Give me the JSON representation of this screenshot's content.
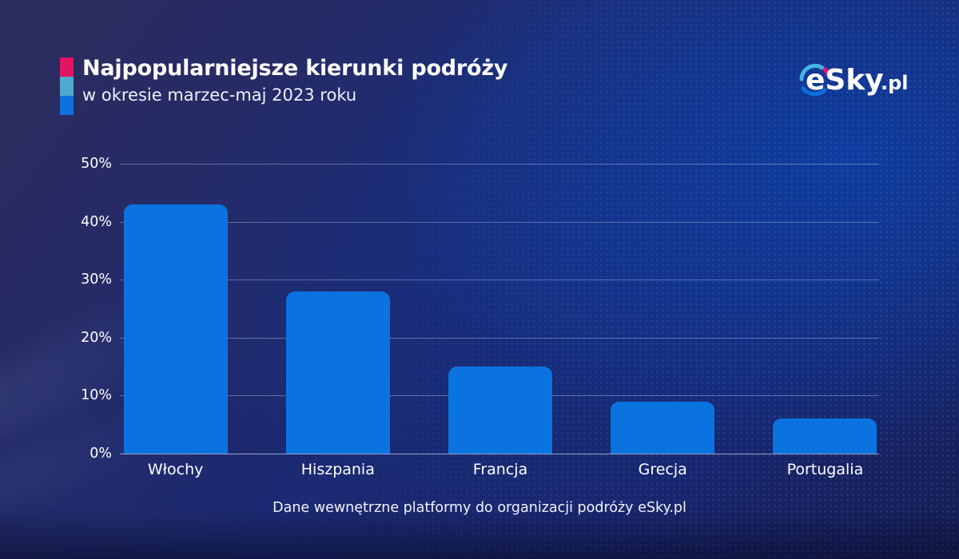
{
  "header": {
    "title": "Najpopularniejsze kierunki podróży",
    "subtitle": "w okresie marzec-maj 2023 roku",
    "accent_colors": [
      "#e11562",
      "#4fa9d0",
      "#0d72dd"
    ]
  },
  "logo": {
    "text": "eSky",
    "suffix": ".pl",
    "arc_colors": {
      "top": "#45b4e6",
      "dot": "#e8156b",
      "bottom": "#0d6fdd"
    }
  },
  "footer": {
    "source": "Dane wewnętrzne platformy do organizacji podróży eSky.pl"
  },
  "colors": {
    "bar": "#0b73e0",
    "background_top_left": "#2c2c5c",
    "background_royal": "#0e3e9e",
    "background_bottom": "#161e56",
    "text": "#ffffff"
  },
  "chart_data": {
    "type": "bar",
    "title": "Najpopularniejsze kierunki podróży w okresie marzec-maj 2023 roku",
    "categories": [
      "Włochy",
      "Hiszpania",
      "Francja",
      "Grecja",
      "Portugalia"
    ],
    "values": [
      43,
      28,
      15,
      9,
      6
    ],
    "unit": "%",
    "xlabel": "",
    "ylabel": "",
    "ylim": [
      0,
      50
    ],
    "yticks": [
      0,
      10,
      20,
      30,
      40,
      50
    ],
    "ytick_labels": [
      "0%",
      "10%",
      "20%",
      "30%",
      "40%",
      "50%"
    ],
    "grid": "horizontal",
    "legend": null,
    "bar_color": "#0b73e0"
  }
}
